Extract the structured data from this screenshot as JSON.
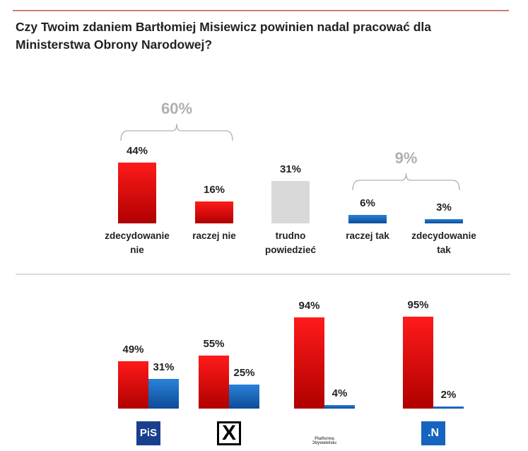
{
  "chart_data": [
    {
      "type": "bar",
      "title": "Czy Twoim zdaniem Bartłomiej Misiewicz powinien nadal pracować dla Ministerstwa Obrony Narodowej?",
      "categories": [
        "zdecydowanie nie",
        "raczej nie",
        "trudno powiedzieć",
        "raczej tak",
        "zdecydowanie tak"
      ],
      "values": [
        44,
        16,
        31,
        6,
        3
      ],
      "value_labels": [
        "44%",
        "16%",
        "31%",
        "6%",
        "3%"
      ],
      "colors": [
        "#e00000",
        "#e00000",
        "#d9d9d9",
        "#1565c0",
        "#1565c0"
      ],
      "ylim": [
        0,
        100
      ],
      "annotations": [
        {
          "value": 60,
          "label": "60%"
        },
        {
          "value": 9,
          "label": "9%"
        }
      ]
    },
    {
      "type": "grouped_bar",
      "categories": [
        "PiS",
        "X",
        "Platforma Obywatelska",
        ".N"
      ],
      "series": [
        {
          "color": "#e00000",
          "values": [
            49,
            55,
            94,
            95
          ],
          "value_labels": [
            "49%",
            "55%",
            "94%",
            "95%"
          ]
        },
        {
          "color": "#1565c0",
          "values": [
            31,
            25,
            4,
            2
          ],
          "value_labels": [
            "31%",
            "25%",
            "4%",
            "2%"
          ]
        }
      ],
      "ylim": [
        0,
        100
      ]
    }
  ]
}
